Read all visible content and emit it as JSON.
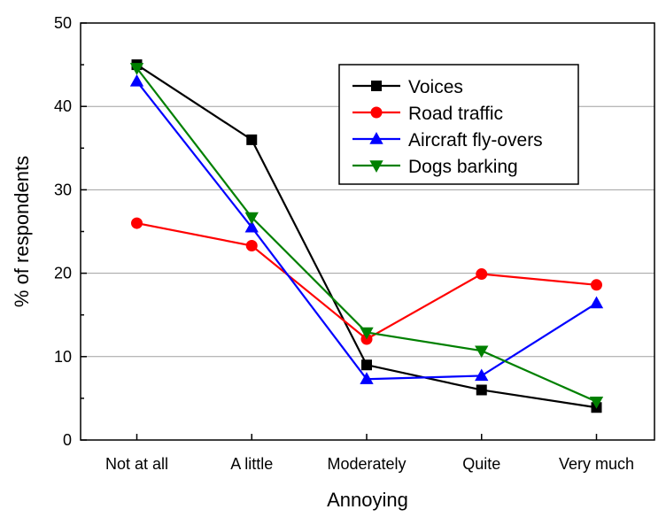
{
  "chart_data": {
    "type": "line",
    "title": "",
    "xlabel": "Annoying",
    "ylabel": "% of respondents",
    "categories": [
      "Not at all",
      "A little",
      "Moderately",
      "Quite",
      "Very much"
    ],
    "ylim": [
      0,
      50
    ],
    "yticks": [
      0,
      10,
      20,
      30,
      40,
      50
    ],
    "grid": "horizontal",
    "legend_position": "top-right",
    "series": [
      {
        "name": "Voices",
        "color": "#000000",
        "marker": "square",
        "values": [
          45,
          36,
          9,
          6,
          3.9
        ]
      },
      {
        "name": "Road traffic",
        "color": "#ff0000",
        "marker": "circle",
        "values": [
          26,
          23.3,
          12.1,
          19.9,
          18.6
        ]
      },
      {
        "name": "Aircraft fly-overs",
        "color": "#0000ff",
        "marker": "triangle-up",
        "values": [
          43,
          25.5,
          7.3,
          7.7,
          16.4
        ]
      },
      {
        "name": "Dogs barking",
        "color": "#008000",
        "marker": "triangle-down",
        "values": [
          44.6,
          26.7,
          12.9,
          10.7,
          4.6
        ]
      }
    ]
  }
}
